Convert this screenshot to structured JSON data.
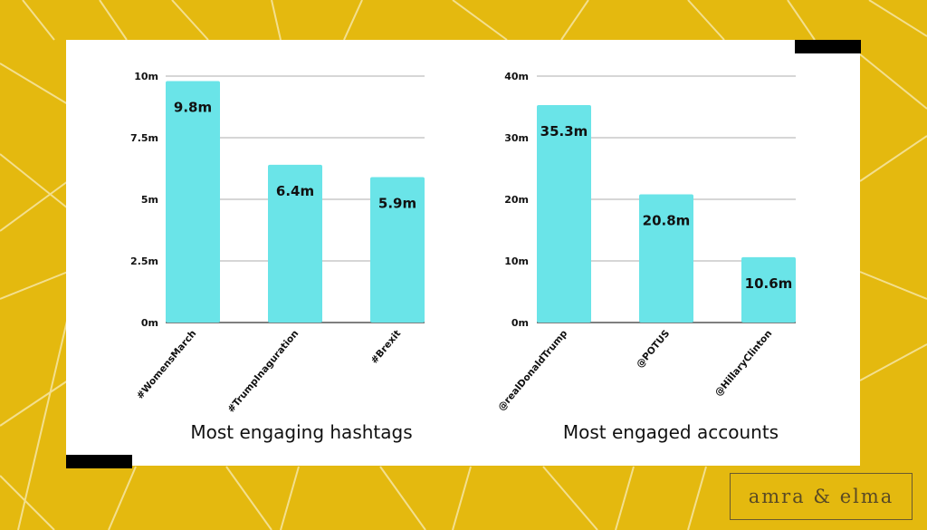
{
  "colors": {
    "background": "#e4b90f",
    "card": "#ffffff",
    "bar": "#6ae4e8",
    "gridline": "#bdbdbd",
    "decor_lines": "#f3df8e",
    "logo": "#5a4a24"
  },
  "logo": {
    "text": "amra & elma"
  },
  "chart_data": [
    {
      "type": "bar",
      "title": "Most engaging hashtags",
      "categories": [
        "#WomensMarch",
        "#TrumpInaguration",
        "#Brexit"
      ],
      "values": [
        9.8,
        6.4,
        5.9
      ],
      "data_labels": [
        "9.8m",
        "6.4m",
        "5.9m"
      ],
      "yticks": [
        0,
        2.5,
        5,
        7.5,
        10
      ],
      "ytick_labels": [
        "0m",
        "2.5m",
        "5m",
        "7.5m",
        "10m"
      ],
      "ylim": [
        0,
        10
      ],
      "xlabel": "",
      "ylabel": "",
      "grid": true,
      "legend": "none"
    },
    {
      "type": "bar",
      "title": "Most engaged accounts",
      "categories": [
        "@realDonaldTrump",
        "@POTUS",
        "@HillaryClinton"
      ],
      "values": [
        35.3,
        20.8,
        10.6
      ],
      "data_labels": [
        "35.3m",
        "20.8m",
        "10.6m"
      ],
      "yticks": [
        0,
        10,
        20,
        30,
        40
      ],
      "ytick_labels": [
        "0m",
        "10m",
        "20m",
        "30m",
        "40m"
      ],
      "ylim": [
        0,
        40
      ],
      "xlabel": "",
      "ylabel": "",
      "grid": true,
      "legend": "none"
    }
  ]
}
